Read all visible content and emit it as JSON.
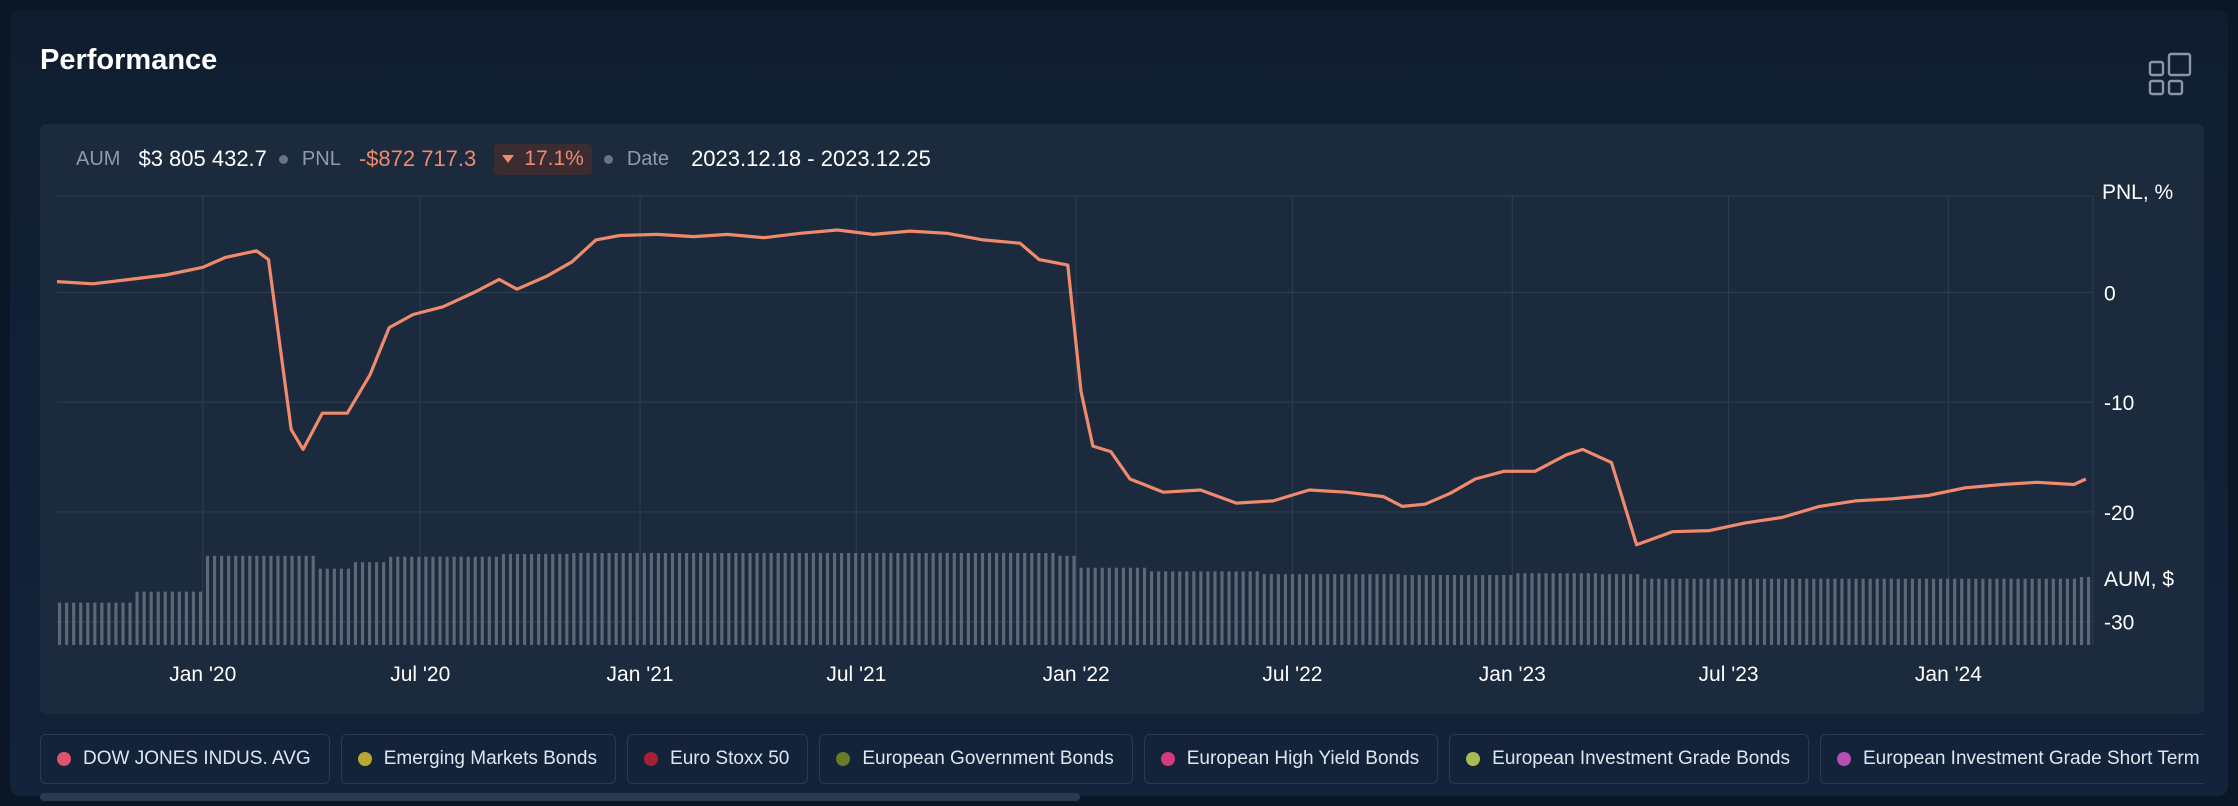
{
  "header": {
    "title": "Performance",
    "layout_icon": "grid-layout-icon"
  },
  "stats": {
    "aum_label": "AUM",
    "aum_value": "$3 805 432.7",
    "pnl_label": "PNL",
    "pnl_value": "-$872 717.3",
    "pnl_change": "17.1%",
    "date_label": "Date",
    "date_range": "2023.12.18 - 2023.12.25"
  },
  "colors": {
    "line": "#f08a6c",
    "bars": "#5d6877",
    "grid": "#2c3b50",
    "text": "#e6ebf2"
  },
  "chart_data": {
    "type": "line",
    "title": "",
    "ylabel": "PNL, %",
    "bar_ylabel": "AUM, $",
    "x_range": [
      "2019-09-01",
      "2024-05-01"
    ],
    "x_ticks": [
      "Jan '20",
      "Jul '20",
      "Jan '21",
      "Jul '21",
      "Jan '22",
      "Jul '22",
      "Jan '23",
      "Jul '23",
      "Jan '24"
    ],
    "y_ticks": [
      0,
      -10,
      -20,
      -30
    ],
    "ylim": [
      -33.5,
      8.8
    ],
    "grid": true,
    "series": [
      {
        "type": "line",
        "points": [
          [
            "2019-09-01",
            1.0
          ],
          [
            "2019-10-01",
            0.8
          ],
          [
            "2019-11-01",
            1.2
          ],
          [
            "2019-12-01",
            1.6
          ],
          [
            "2020-01-01",
            2.3
          ],
          [
            "2020-01-20",
            3.2
          ],
          [
            "2020-02-15",
            3.8
          ],
          [
            "2020-02-25",
            3.0
          ],
          [
            "2020-03-15",
            -12.5
          ],
          [
            "2020-03-25",
            -14.3
          ],
          [
            "2020-04-10",
            -11.0
          ],
          [
            "2020-05-01",
            -11.0
          ],
          [
            "2020-05-20",
            -7.5
          ],
          [
            "2020-06-05",
            -3.2
          ],
          [
            "2020-06-25",
            -2.0
          ],
          [
            "2020-07-20",
            -1.3
          ],
          [
            "2020-08-15",
            0.0
          ],
          [
            "2020-09-05",
            1.2
          ],
          [
            "2020-09-20",
            0.3
          ],
          [
            "2020-10-15",
            1.5
          ],
          [
            "2020-11-05",
            2.8
          ],
          [
            "2020-11-25",
            4.8
          ],
          [
            "2020-12-15",
            5.2
          ],
          [
            "2021-01-15",
            5.3
          ],
          [
            "2021-02-15",
            5.1
          ],
          [
            "2021-03-15",
            5.3
          ],
          [
            "2021-04-15",
            5.0
          ],
          [
            "2021-05-15",
            5.4
          ],
          [
            "2021-06-15",
            5.7
          ],
          [
            "2021-07-15",
            5.3
          ],
          [
            "2021-08-15",
            5.6
          ],
          [
            "2021-09-15",
            5.4
          ],
          [
            "2021-10-15",
            4.8
          ],
          [
            "2021-11-15",
            4.5
          ],
          [
            "2021-12-01",
            3.0
          ],
          [
            "2021-12-25",
            2.5
          ],
          [
            "2022-01-05",
            -9.0
          ],
          [
            "2022-01-15",
            -14.0
          ],
          [
            "2022-01-30",
            -14.5
          ],
          [
            "2022-02-15",
            -17.0
          ],
          [
            "2022-03-15",
            -18.2
          ],
          [
            "2022-04-15",
            -18.0
          ],
          [
            "2022-05-15",
            -19.2
          ],
          [
            "2022-06-15",
            -19.0
          ],
          [
            "2022-07-15",
            -18.0
          ],
          [
            "2022-08-15",
            -18.2
          ],
          [
            "2022-09-15",
            -18.6
          ],
          [
            "2022-10-01",
            -19.5
          ],
          [
            "2022-10-20",
            -19.3
          ],
          [
            "2022-11-10",
            -18.3
          ],
          [
            "2022-12-01",
            -17.0
          ],
          [
            "2022-12-25",
            -16.3
          ],
          [
            "2023-01-20",
            -16.3
          ],
          [
            "2023-02-15",
            -14.8
          ],
          [
            "2023-03-01",
            -14.3
          ],
          [
            "2023-03-25",
            -15.5
          ],
          [
            "2023-04-15",
            -23.0
          ],
          [
            "2023-05-15",
            -21.8
          ],
          [
            "2023-06-15",
            -21.7
          ],
          [
            "2023-07-15",
            -21.0
          ],
          [
            "2023-08-15",
            -20.5
          ],
          [
            "2023-09-15",
            -19.5
          ],
          [
            "2023-10-15",
            -19.0
          ],
          [
            "2023-11-15",
            -18.8
          ],
          [
            "2023-12-15",
            -18.5
          ],
          [
            "2024-01-15",
            -17.8
          ],
          [
            "2024-02-15",
            -17.5
          ],
          [
            "2024-03-15",
            -17.3
          ],
          [
            "2024-04-15",
            -17.5
          ],
          [
            "2024-04-25",
            -17.0
          ]
        ]
      },
      {
        "type": "bar",
        "name": "AUM, $",
        "note": "relative AUM level over time (0-1)",
        "levels": [
          [
            "2019-09-01",
            0.46
          ],
          [
            "2019-10-01",
            0.46
          ],
          [
            "2019-11-01",
            0.58
          ],
          [
            "2019-12-01",
            0.58
          ],
          [
            "2020-01-01",
            0.97
          ],
          [
            "2020-03-01",
            0.97
          ],
          [
            "2020-04-01",
            0.83
          ],
          [
            "2020-05-01",
            0.9
          ],
          [
            "2020-06-01",
            0.96
          ],
          [
            "2020-09-01",
            0.99
          ],
          [
            "2020-11-01",
            1.0
          ],
          [
            "2021-11-01",
            1.0
          ],
          [
            "2021-12-15",
            0.97
          ],
          [
            "2022-01-01",
            0.84
          ],
          [
            "2022-03-01",
            0.8
          ],
          [
            "2022-06-01",
            0.77
          ],
          [
            "2022-10-01",
            0.76
          ],
          [
            "2023-01-01",
            0.78
          ],
          [
            "2023-03-15",
            0.77
          ],
          [
            "2023-04-15",
            0.72
          ],
          [
            "2024-04-15",
            0.74
          ],
          [
            "2024-05-01",
            0.4
          ]
        ]
      }
    ]
  },
  "legend": [
    {
      "label": "DOW JONES INDUS. AVG",
      "color": "#e0536f"
    },
    {
      "label": "Emerging Markets Bonds",
      "color": "#b7a832"
    },
    {
      "label": "Euro Stoxx 50",
      "color": "#a61f34"
    },
    {
      "label": "European Government Bonds",
      "color": "#6a7a26"
    },
    {
      "label": "European High Yield Bonds",
      "color": "#d63a7e"
    },
    {
      "label": "European Investment Grade Bonds",
      "color": "#aabb52"
    },
    {
      "label": "European Investment Grade Short Term Bonds",
      "color": "#b44fb6"
    }
  ]
}
